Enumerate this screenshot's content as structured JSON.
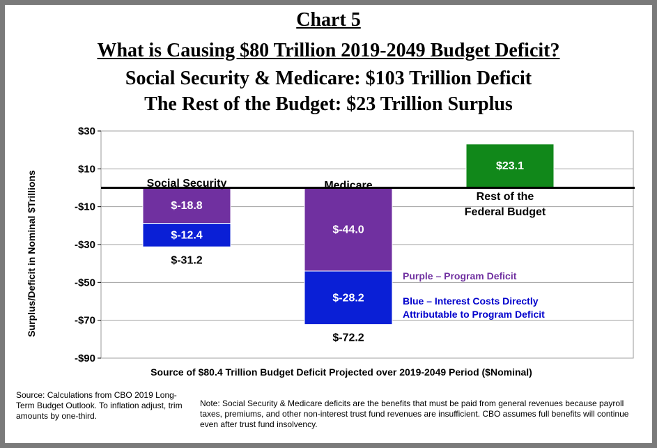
{
  "header": {
    "title": "Chart 5",
    "subtitle": "What is Causing $80 Trillion 2019-2049 Budget Deficit?",
    "line3": "Social Security & Medicare: $103 Trillion Deficit",
    "line4": "The Rest of the Budget: $23 Trillion Surplus"
  },
  "chart_data": {
    "type": "bar",
    "stacked": true,
    "categories": [
      "Social Security",
      "Medicare",
      "Rest of the Federal Budget"
    ],
    "category_labels": [
      "Social Security",
      "Medicare",
      "Rest of the\nFederal Budget"
    ],
    "series": [
      {
        "key": "program",
        "values": [
          -18.8,
          -44.0,
          null
        ],
        "color": "#7030a0",
        "labels": [
          "$-18.8",
          "$-44.0",
          null
        ]
      },
      {
        "key": "interest",
        "values": [
          -12.4,
          -28.2,
          null
        ],
        "color": "#0a1fd6",
        "labels": [
          "$-12.4",
          "$-28.2",
          null
        ]
      },
      {
        "key": "surplus",
        "values": [
          null,
          null,
          23.1
        ],
        "color": "#11881a",
        "labels": [
          null,
          null,
          "$23.1"
        ]
      }
    ],
    "totals": [
      "$-31.2",
      "$-72.2",
      null
    ],
    "ylabel": "Surplus/Deficit in Nominal $Trillions",
    "xlabel": "Source of $80.4 Trillion Budget Deficit Projected over 2019-2049 Period ($Nominal)",
    "ylim": [
      -90,
      30
    ],
    "yticks": [
      30,
      10,
      -10,
      -30,
      -50,
      -70,
      -90
    ],
    "ytick_labels": [
      "$30",
      "$10",
      "-$10",
      "-$30",
      "-$50",
      "-$70",
      "-$90"
    ],
    "grid": true,
    "legend": [
      {
        "text": "Purple – Program  Deficit",
        "color": "#7030a0"
      },
      {
        "text": "Blue – Interest Costs Directly\nAttributable to Program  Deficit",
        "color": "#0000cc"
      }
    ]
  },
  "footer": {
    "source": "Source: Calculations  from CBO 2019 Long-Term Budget Outlook. To inflation adjust, trim amounts by one-third.",
    "note": "Note: Social Security & Medicare deficits are the benefits that must be paid from general revenues because payroll taxes, premiums, and other non-interest trust fund revenues  are insufficient.  CBO assumes full benefits will continue  even after trust fund insolvency."
  }
}
